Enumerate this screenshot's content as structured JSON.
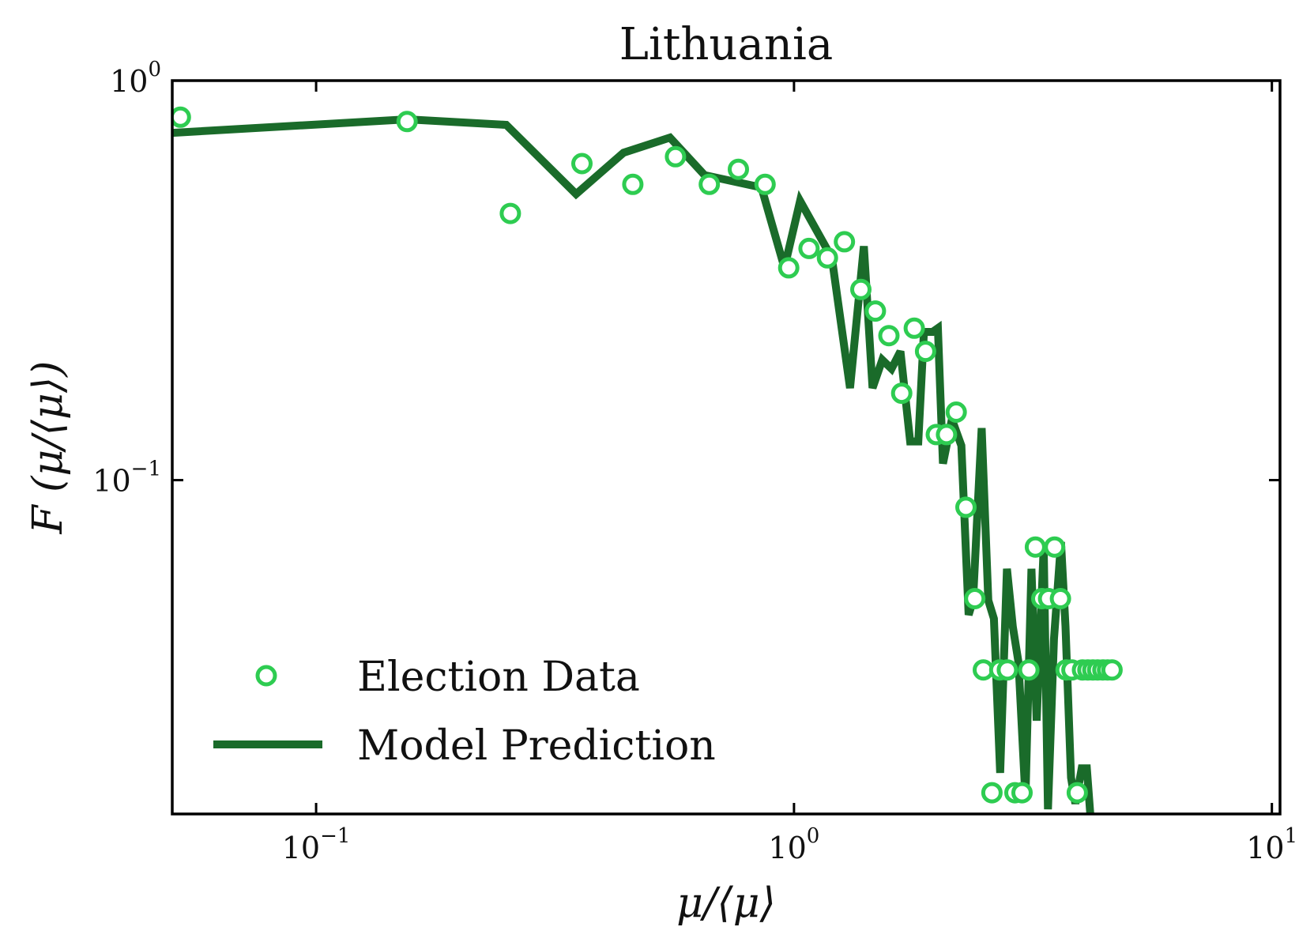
{
  "chart_data": {
    "type": "line",
    "title": "Lithuania",
    "xlabel": "μ/⟨μ⟩",
    "ylabel": "F (μ/⟨μ⟩)",
    "x_scale": "log",
    "y_scale": "log",
    "xlim": [
      0.05,
      10.4
    ],
    "ylim": [
      0.0146,
      1.0
    ],
    "x_ticks": [
      {
        "value": 0.1,
        "base": "10",
        "exp": "−1"
      },
      {
        "value": 1,
        "base": "10",
        "exp": "0"
      },
      {
        "value": 10,
        "base": "10",
        "exp": "1"
      }
    ],
    "y_ticks": [
      {
        "value": 1,
        "base": "10",
        "exp": "0"
      },
      {
        "value": 0.1,
        "base": "10",
        "exp": "−1"
      }
    ],
    "legend_position": "lower-left",
    "grid": false,
    "series": [
      {
        "name": "Election Data",
        "kind": "scatter",
        "color": "#2ecc51",
        "x": [
          0.052,
          0.155,
          0.255,
          0.36,
          0.46,
          0.565,
          0.665,
          0.765,
          0.87,
          0.975,
          1.075,
          1.175,
          1.275,
          1.38,
          1.48,
          1.58,
          1.68,
          1.785,
          1.885,
          1.985,
          2.085,
          2.185,
          2.29,
          2.39,
          2.49,
          2.595,
          2.695,
          2.795,
          2.9,
          3.0,
          3.1,
          3.2,
          3.3,
          3.41,
          3.51,
          3.61,
          3.71,
          3.815,
          3.915,
          4.015,
          4.12,
          4.22,
          4.32,
          4.43,
          4.53,
          4.63
        ],
        "y": [
          0.81,
          0.79,
          0.465,
          0.62,
          0.55,
          0.645,
          0.55,
          0.6,
          0.55,
          0.34,
          0.38,
          0.36,
          0.395,
          0.3,
          0.265,
          0.23,
          0.165,
          0.24,
          0.21,
          0.13,
          0.13,
          0.148,
          0.0855,
          0.0505,
          0.0335,
          0.0165,
          0.0335,
          0.0335,
          0.0165,
          0.0165,
          0.0335,
          0.068,
          0.0505,
          0.0505,
          0.068,
          0.0505,
          0.0335,
          0.0335,
          0.0165,
          0.0335,
          0.0335,
          0.0335,
          0.0335,
          0.0335,
          0.0335,
          0.0335
        ]
      },
      {
        "name": "Model Prediction",
        "kind": "line",
        "color": "#1a6b2a",
        "x": [
          0.05,
          0.155,
          0.25,
          0.35,
          0.44,
          0.55,
          0.65,
          0.855,
          0.955,
          1.03,
          1.2,
          1.31,
          1.4,
          1.46,
          1.53,
          1.6,
          1.67,
          1.75,
          1.82,
          1.87,
          1.95,
          2.0,
          2.05,
          2.14,
          2.24,
          2.32,
          2.37,
          2.47,
          2.55,
          2.62,
          2.7,
          2.79,
          2.87,
          2.95,
          3.05,
          3.14,
          3.22,
          3.33,
          3.4,
          3.5,
          3.62,
          3.7,
          3.8,
          3.88,
          4.0,
          4.1,
          4.22,
          4.3
        ],
        "y": [
          0.74,
          0.8,
          0.775,
          0.52,
          0.66,
          0.72,
          0.58,
          0.54,
          0.34,
          0.5,
          0.36,
          0.17,
          0.385,
          0.17,
          0.2,
          0.19,
          0.21,
          0.125,
          0.125,
          0.235,
          0.235,
          0.24,
          0.11,
          0.142,
          0.122,
          0.046,
          0.05,
          0.135,
          0.05,
          0.045,
          0.0185,
          0.06,
          0.043,
          0.035,
          0.016,
          0.06,
          0.025,
          0.068,
          0.015,
          0.04,
          0.07,
          0.043,
          0.018,
          0.0155,
          0.019,
          0.019,
          0.012,
          0.012
        ]
      }
    ]
  }
}
